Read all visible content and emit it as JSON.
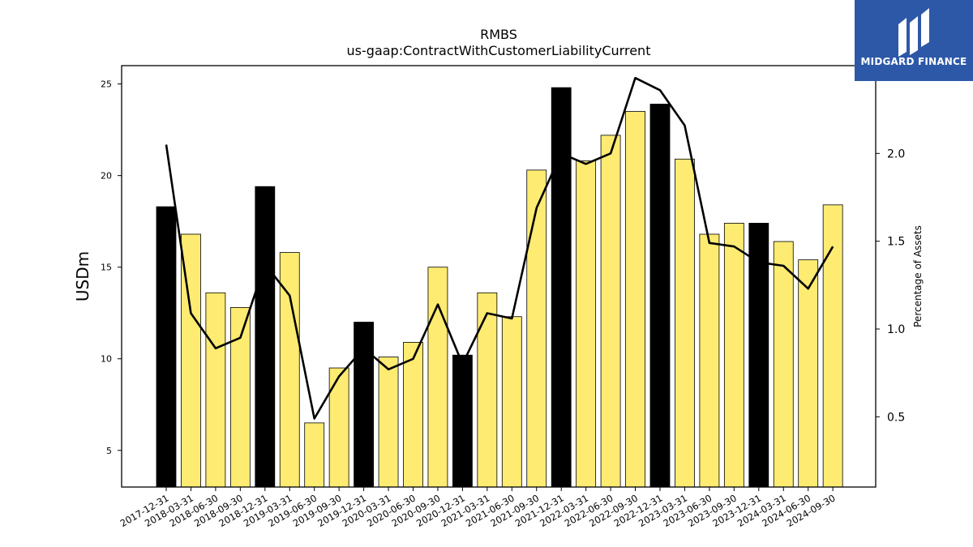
{
  "brand": {
    "name": "MIDGARD FINANCE",
    "bg_color": "#2d58a8"
  },
  "chart_data": {
    "type": "bar+line",
    "title": "RMBS",
    "subtitle": "us-gaap:ContractWithCustomerLiabilityCurrent",
    "ylabel": "USDm",
    "ylabel_right": "Percentage of Assets",
    "ylim": [
      3.0,
      26.0
    ],
    "ylim_right": [
      0.1,
      2.5
    ],
    "yticks": [
      5,
      10,
      15,
      20,
      25
    ],
    "yticks_right": [
      0.5,
      1.0,
      1.5,
      2.0
    ],
    "categories": [
      "2017-12-31",
      "2018-03-31",
      "2018-06-30",
      "2018-09-30",
      "2018-12-31",
      "2019-03-31",
      "2019-06-30",
      "2019-09-30",
      "2019-12-31",
      "2020-03-31",
      "2020-06-30",
      "2020-09-30",
      "2020-12-31",
      "2021-03-31",
      "2021-06-30",
      "2021-09-30",
      "2021-12-31",
      "2022-03-31",
      "2022-06-30",
      "2022-09-30",
      "2022-12-31",
      "2023-03-31",
      "2023-06-30",
      "2023-09-30",
      "2023-12-31",
      "2024-03-31",
      "2024-06-30",
      "2024-09-30"
    ],
    "series": [
      {
        "kind": "bar",
        "values": [
          18.3,
          16.8,
          13.6,
          12.8,
          19.4,
          15.8,
          6.5,
          9.5,
          12.0,
          10.1,
          10.9,
          15.0,
          10.2,
          13.6,
          12.3,
          20.3,
          24.8,
          20.8,
          22.2,
          23.5,
          23.9,
          20.9,
          16.8,
          17.4,
          17.4,
          16.4,
          15.4,
          18.4
        ]
      },
      {
        "kind": "line",
        "axis": "right",
        "values": [
          2.05,
          1.09,
          0.89,
          0.95,
          1.37,
          1.19,
          0.49,
          0.73,
          0.89,
          0.77,
          0.83,
          1.14,
          0.8,
          1.09,
          1.06,
          1.69,
          2.0,
          1.94,
          2.0,
          2.43,
          2.36,
          2.16,
          1.49,
          1.47,
          1.38,
          1.36,
          1.23,
          1.47
        ]
      }
    ],
    "highlight_indices": [
      0,
      4,
      8,
      12,
      16,
      20,
      24
    ],
    "colors": {
      "bar": "#fdeb72",
      "bar_highlight": "#000000",
      "line": "#000000"
    },
    "grid": false,
    "legend": "none"
  }
}
